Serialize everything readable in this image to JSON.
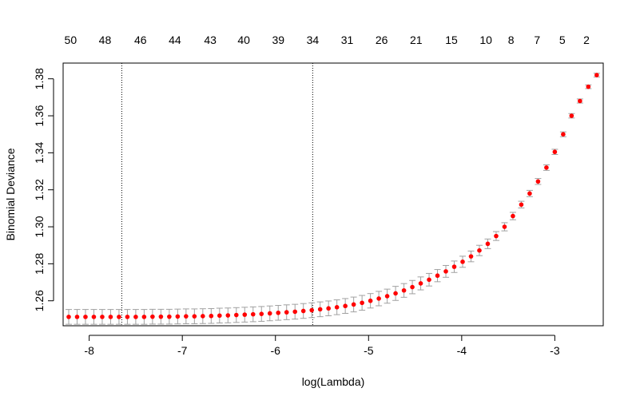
{
  "chart_data": {
    "type": "scatter",
    "title": "",
    "xlabel": "log(Lambda)",
    "ylabel": "Binomial Deviance",
    "xlim": [
      -8.28,
      -2.48
    ],
    "ylim": [
      1.2465,
      1.3885
    ],
    "x_ticks": [
      -8,
      -7,
      -6,
      -5,
      -4,
      -3
    ],
    "x_tick_labels": [
      "-8",
      "-7",
      "-6",
      "-5",
      "-4",
      "-3"
    ],
    "y_ticks": [
      1.26,
      1.28,
      1.3,
      1.32,
      1.34,
      1.36,
      1.38
    ],
    "y_tick_labels": [
      "1.26",
      "1.28",
      "1.30",
      "1.32",
      "1.34",
      "1.36",
      "1.38"
    ],
    "top_axis": {
      "x": [
        -8.2,
        -7.83,
        -7.45,
        -7.08,
        -6.7,
        -6.34,
        -5.97,
        -5.6,
        -5.23,
        -4.86,
        -4.49,
        -4.11,
        -3.74,
        -3.47,
        -3.19,
        -2.92,
        -2.66
      ],
      "labels": [
        "50",
        "48",
        "46",
        "44",
        "43",
        "40",
        "39",
        "34",
        "31",
        "26",
        "21",
        "15",
        "10",
        "8",
        "7",
        "5",
        "2"
      ]
    },
    "vlines": [
      -7.65,
      -5.6
    ],
    "series": [
      {
        "x": [
          -8.22,
          -8.13,
          -8.04,
          -7.95,
          -7.86,
          -7.77,
          -7.68,
          -7.59,
          -7.5,
          -7.41,
          -7.32,
          -7.23,
          -7.14,
          -7.05,
          -6.96,
          -6.87,
          -6.78,
          -6.69,
          -6.6,
          -6.51,
          -6.42,
          -6.33,
          -6.24,
          -6.15,
          -6.06,
          -5.97,
          -5.88,
          -5.79,
          -5.7,
          -5.61,
          -5.52,
          -5.43,
          -5.34,
          -5.25,
          -5.16,
          -5.07,
          -4.98,
          -4.89,
          -4.8,
          -4.71,
          -4.62,
          -4.53,
          -4.44,
          -4.35,
          -4.26,
          -4.17,
          -4.08,
          -3.99,
          -3.9,
          -3.81,
          -3.72,
          -3.63,
          -3.54,
          -3.45,
          -3.36,
          -3.27,
          -3.18,
          -3.09,
          -3.0,
          -2.91,
          -2.82,
          -2.73,
          -2.64,
          -2.55
        ],
        "y": [
          1.2513,
          1.2513,
          1.2513,
          1.2513,
          1.2513,
          1.2513,
          1.2513,
          1.2513,
          1.2513,
          1.2513,
          1.2514,
          1.2514,
          1.2514,
          1.2515,
          1.2516,
          1.2516,
          1.2517,
          1.2518,
          1.252,
          1.2521,
          1.2523,
          1.2525,
          1.2527,
          1.2529,
          1.2532,
          1.2535,
          1.2538,
          1.2541,
          1.2545,
          1.2549,
          1.2554,
          1.2559,
          1.2565,
          1.2572,
          1.258,
          1.2589,
          1.26,
          1.2612,
          1.2625,
          1.264,
          1.2656,
          1.2674,
          1.2694,
          1.2714,
          1.2736,
          1.2759,
          1.2784,
          1.2811,
          1.284,
          1.2872,
          1.2908,
          1.295,
          1.3,
          1.3058,
          1.312,
          1.318,
          1.3245,
          1.332,
          1.3405,
          1.35,
          1.36,
          1.368,
          1.3757,
          1.382
        ],
        "err": [
          0.004,
          0.004,
          0.004,
          0.004,
          0.004,
          0.004,
          0.004,
          0.004,
          0.004,
          0.004,
          0.004,
          0.004,
          0.004,
          0.004,
          0.004,
          0.004,
          0.004,
          0.004,
          0.004,
          0.004,
          0.004,
          0.004,
          0.004,
          0.004,
          0.004,
          0.004,
          0.004,
          0.004,
          0.004,
          0.004,
          0.004,
          0.004,
          0.004,
          0.004,
          0.004,
          0.004,
          0.0039,
          0.0039,
          0.0038,
          0.0038,
          0.0037,
          0.0036,
          0.0035,
          0.0034,
          0.0033,
          0.0032,
          0.0031,
          0.003,
          0.0029,
          0.0028,
          0.0026,
          0.0024,
          0.0022,
          0.002,
          0.0018,
          0.0017,
          0.0016,
          0.0015,
          0.0014,
          0.0013,
          0.0012,
          0.0011,
          0.001,
          0.001
        ],
        "point_color": "#ff0000",
        "errorbar_color": "#a0a0a0"
      }
    ],
    "grid": false
  }
}
